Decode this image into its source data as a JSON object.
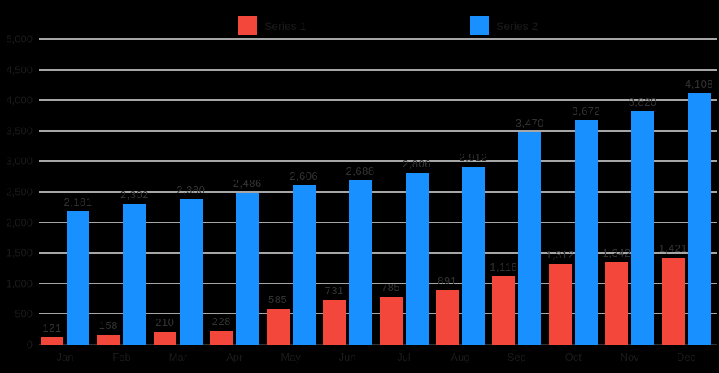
{
  "chart_data": {
    "type": "bar",
    "title": "",
    "categories": [
      "Jan",
      "Feb",
      "Mar",
      "Apr",
      "May",
      "Jun",
      "Jul",
      "Aug",
      "Sep",
      "Oct",
      "Nov",
      "Dec"
    ],
    "series": [
      {
        "name": "Series 1",
        "color": "#F4473C",
        "values": [
          121,
          158,
          210,
          228,
          585,
          731,
          785,
          891,
          1118,
          1312,
          1342,
          1421
        ],
        "labels": [
          "121",
          "158",
          "210",
          "228",
          "585",
          "731",
          "785",
          "891",
          "1,118",
          "1,312",
          "1,342",
          "1,421"
        ]
      },
      {
        "name": "Series 2",
        "color": "#1890FF",
        "values": [
          2181,
          2302,
          2380,
          2486,
          2606,
          2688,
          2806,
          2912,
          3470,
          3672,
          3820,
          4108
        ],
        "labels": [
          "2,181",
          "2,302",
          "2,380",
          "2,486",
          "2,606",
          "2,688",
          "2,806",
          "2,912",
          "3,470",
          "3,672",
          "3,820",
          "4,108"
        ]
      }
    ],
    "xlabel": "",
    "ylabel": "",
    "ylim": [
      0,
      5000
    ],
    "ytick_interval": 500,
    "yticks": [
      "0",
      "500",
      "1,000",
      "1,500",
      "2,000",
      "2,500",
      "3,000",
      "3,500",
      "4,000",
      "4,500",
      "5,000"
    ],
    "grid": true,
    "legend_position": "top",
    "gridline_color": "#A6A6A6",
    "baseline_color": "#333333",
    "data_label_color": "#333333",
    "axis_text_color": "#1a1a1a",
    "background_color": "#000000"
  }
}
